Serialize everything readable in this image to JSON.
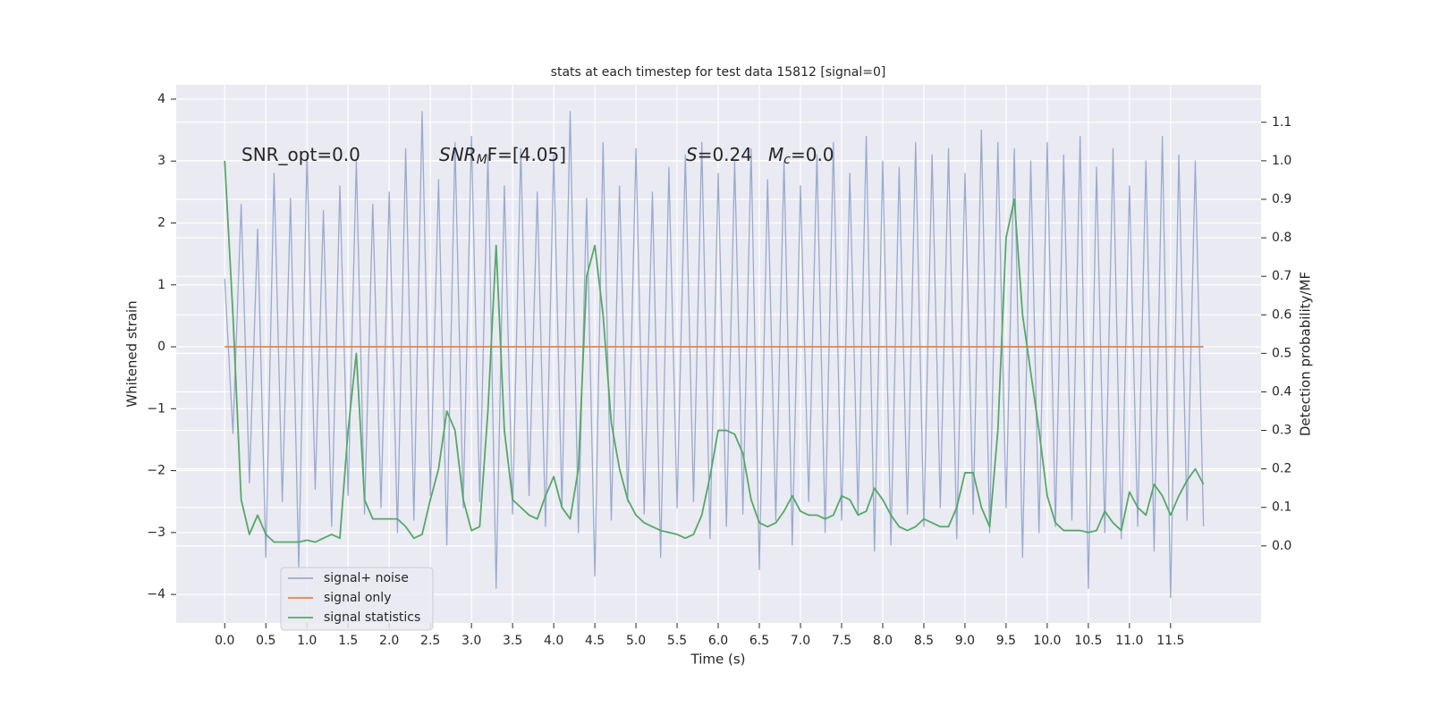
{
  "chart_data": {
    "type": "line",
    "title": "stats at each timestep for test data 15812 [signal=0]",
    "xlabel": "Time (s)",
    "ylabel": "Whitened strain",
    "y2label": "Detection probability/MF",
    "annotations": [
      [
        "SNR_opt=0.0"
      ],
      [
        "SNR",
        "M",
        "F=[4.05]"
      ],
      [
        "S",
        "=0.24"
      ],
      [
        "M",
        "c",
        "=0.0"
      ]
    ],
    "x": [
      0.0,
      0.1,
      0.2,
      0.3,
      0.4,
      0.5,
      0.6,
      0.7,
      0.8,
      0.9,
      1.0,
      1.1,
      1.2,
      1.3,
      1.4,
      1.5,
      1.6,
      1.7,
      1.8,
      1.9,
      2.0,
      2.1,
      2.2,
      2.3,
      2.4,
      2.5,
      2.6,
      2.7,
      2.8,
      2.9,
      3.0,
      3.1,
      3.2,
      3.3,
      3.4,
      3.5,
      3.6,
      3.7,
      3.8,
      3.9,
      4.0,
      4.1,
      4.2,
      4.3,
      4.4,
      4.5,
      4.6,
      4.7,
      4.8,
      4.9,
      5.0,
      5.1,
      5.2,
      5.3,
      5.4,
      5.5,
      5.6,
      5.7,
      5.8,
      5.9,
      6.0,
      6.1,
      6.2,
      6.3,
      6.4,
      6.5,
      6.6,
      6.7,
      6.8,
      6.9,
      7.0,
      7.1,
      7.2,
      7.3,
      7.4,
      7.5,
      7.6,
      7.7,
      7.8,
      7.9,
      8.0,
      8.1,
      8.2,
      8.3,
      8.4,
      8.5,
      8.6,
      8.7,
      8.8,
      8.9,
      9.0,
      9.1,
      9.2,
      9.3,
      9.4,
      9.5,
      9.6,
      9.7,
      9.8,
      9.9,
      10.0,
      10.1,
      10.2,
      10.3,
      10.4,
      10.5,
      10.6,
      10.7,
      10.8,
      10.9,
      11.0,
      11.1,
      11.2,
      11.3,
      11.4,
      11.5,
      11.6,
      11.7,
      11.8,
      11.9
    ],
    "series": [
      {
        "name": "signal+ noise",
        "color": "#9aaacf",
        "values": [
          1.1,
          -1.4,
          2.3,
          -2.2,
          1.9,
          -3.4,
          2.8,
          -2.5,
          2.4,
          -3.6,
          3.1,
          -2.3,
          2.2,
          -2.9,
          2.6,
          -2.4,
          3.0,
          -2.7,
          2.3,
          -2.6,
          2.5,
          -3.0,
          3.2,
          -2.8,
          3.8,
          -2.4,
          2.7,
          -3.2,
          3.3,
          -2.6,
          3.4,
          -2.5,
          3.1,
          -3.9,
          2.6,
          -2.7,
          3.2,
          -2.4,
          2.5,
          -2.9,
          3.1,
          -2.6,
          3.8,
          -3.0,
          2.4,
          -3.7,
          3.3,
          -2.8,
          2.6,
          -2.5,
          3.2,
          -2.7,
          2.5,
          -3.4,
          2.9,
          -2.6,
          3.1,
          -2.5,
          3.3,
          -3.1,
          2.8,
          -2.9,
          3.0,
          -2.7,
          3.2,
          -3.6,
          2.7,
          -2.8,
          3.0,
          -3.2,
          2.6,
          -2.5,
          3.1,
          -3.0,
          3.3,
          -2.8,
          2.8,
          -2.7,
          3.4,
          -3.3,
          3.0,
          -3.2,
          2.9,
          -2.7,
          3.3,
          -2.9,
          3.1,
          -2.6,
          3.2,
          -3.1,
          2.8,
          -2.7,
          3.5,
          -3.0,
          3.3,
          -2.6,
          3.2,
          -3.4,
          3.0,
          -3.0,
          3.3,
          -2.9,
          3.1,
          -2.8,
          3.4,
          -3.9,
          2.9,
          -3.0,
          3.2,
          -3.1,
          2.6,
          -2.9,
          3.0,
          -3.3,
          3.4,
          -4.05,
          3.1,
          -2.8,
          3.0,
          -2.9
        ]
      },
      {
        "name": "signal only",
        "color": "#dd8452",
        "values": [
          0,
          0,
          0,
          0,
          0,
          0,
          0,
          0,
          0,
          0,
          0,
          0,
          0,
          0,
          0,
          0,
          0,
          0,
          0,
          0,
          0,
          0,
          0,
          0,
          0,
          0,
          0,
          0,
          0,
          0,
          0,
          0,
          0,
          0,
          0,
          0,
          0,
          0,
          0,
          0,
          0,
          0,
          0,
          0,
          0,
          0,
          0,
          0,
          0,
          0,
          0,
          0,
          0,
          0,
          0,
          0,
          0,
          0,
          0,
          0,
          0,
          0,
          0,
          0,
          0,
          0,
          0,
          0,
          0,
          0,
          0,
          0,
          0,
          0,
          0,
          0,
          0,
          0,
          0,
          0,
          0,
          0,
          0,
          0,
          0,
          0,
          0,
          0,
          0,
          0,
          0,
          0,
          0,
          0,
          0,
          0,
          0,
          0,
          0,
          0,
          0,
          0,
          0,
          0,
          0,
          0,
          0,
          0,
          0,
          0,
          0,
          0,
          0,
          0,
          0,
          0,
          0,
          0,
          0,
          0
        ]
      },
      {
        "name": "signal statistics",
        "color": "#55a868",
        "axis": "y2",
        "values": [
          1.0,
          0.6,
          0.12,
          0.03,
          0.08,
          0.03,
          0.01,
          0.01,
          0.01,
          0.01,
          0.015,
          0.01,
          0.02,
          0.03,
          0.02,
          0.3,
          0.5,
          0.12,
          0.07,
          0.07,
          0.07,
          0.07,
          0.05,
          0.02,
          0.03,
          0.12,
          0.2,
          0.35,
          0.3,
          0.12,
          0.04,
          0.05,
          0.35,
          0.78,
          0.3,
          0.12,
          0.1,
          0.08,
          0.07,
          0.13,
          0.18,
          0.1,
          0.07,
          0.2,
          0.7,
          0.78,
          0.6,
          0.32,
          0.2,
          0.12,
          0.08,
          0.06,
          0.05,
          0.04,
          0.035,
          0.03,
          0.02,
          0.03,
          0.08,
          0.18,
          0.3,
          0.3,
          0.29,
          0.24,
          0.12,
          0.06,
          0.05,
          0.06,
          0.09,
          0.13,
          0.09,
          0.08,
          0.08,
          0.07,
          0.08,
          0.13,
          0.12,
          0.08,
          0.09,
          0.15,
          0.12,
          0.08,
          0.05,
          0.04,
          0.05,
          0.07,
          0.06,
          0.05,
          0.05,
          0.1,
          0.19,
          0.19,
          0.1,
          0.05,
          0.3,
          0.8,
          0.9,
          0.6,
          0.45,
          0.3,
          0.13,
          0.06,
          0.04,
          0.04,
          0.04,
          0.035,
          0.04,
          0.09,
          0.06,
          0.04,
          0.14,
          0.1,
          0.08,
          0.16,
          0.13,
          0.08,
          0.13,
          0.17,
          0.2,
          0.16
        ]
      }
    ],
    "xlim": [
      -0.59,
      12.6
    ],
    "xticks": [
      {
        "value": 0,
        "label": "0.0"
      },
      0.5,
      {
        "value": 1,
        "label": "1.0"
      },
      1.5,
      {
        "value": 2,
        "label": "2.0"
      },
      2.5,
      {
        "value": 3,
        "label": "3.0"
      },
      3.5,
      {
        "value": 4,
        "label": "4.0"
      },
      4.5,
      {
        "value": 5,
        "label": "5.0"
      },
      5.5,
      {
        "value": 6,
        "label": "6.0"
      },
      6.5,
      {
        "value": 7,
        "label": "7.0"
      },
      7.5,
      {
        "value": 8,
        "label": "8.0"
      },
      8.5,
      {
        "value": 9,
        "label": "9.0"
      },
      9.5,
      {
        "value": 10,
        "label": "10.0"
      },
      10.5,
      {
        "value": 11,
        "label": "11.0"
      },
      11.5
    ],
    "ylim": [
      -4.46,
      4.23
    ],
    "yticks": [
      {
        "value": -4,
        "label": "−4"
      },
      {
        "value": -3,
        "label": "−3"
      },
      {
        "value": -2,
        "label": "−2"
      },
      {
        "value": -1,
        "label": "−1"
      },
      0,
      1,
      2,
      3,
      4
    ],
    "y2lim": [
      -0.2,
      1.197
    ],
    "y2ticks": [
      {
        "value": 0,
        "label": "0.0"
      },
      0.1,
      0.2,
      0.3,
      0.4,
      0.5,
      0.6,
      0.7,
      0.8,
      0.9,
      {
        "value": 1,
        "label": "1.0"
      },
      1.1
    ],
    "grid": true,
    "legend": "lower left"
  }
}
